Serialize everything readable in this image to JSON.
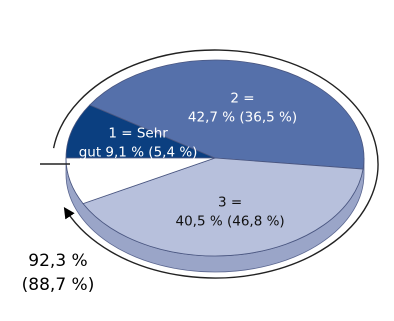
{
  "chart_data": {
    "type": "pie",
    "slices": [
      {
        "name": "1 = Sehr gut",
        "label_lines": [
          "1 = Sehr",
          "gut 9,1 % (5,4 %)"
        ],
        "value": 9.1,
        "comparison": 5.4,
        "color": "#0b3f80",
        "text_color": "#ffffff"
      },
      {
        "name": "2",
        "label_lines": [
          "2 =",
          "42,7 % (36,5 %)"
        ],
        "value": 42.7,
        "comparison": 36.5,
        "color": "#5570aa",
        "text_color": "#ffffff"
      },
      {
        "name": "3",
        "label_lines": [
          "3 =",
          "40,5 % (46,8 %)"
        ],
        "value": 40.5,
        "comparison": 46.8,
        "color": "#b7c0dc",
        "text_color": "#111111"
      },
      {
        "name": "rest",
        "label_lines": [],
        "value": 7.7,
        "color": "#ffffff"
      }
    ],
    "cumulative_label": [
      "92,3 %",
      "(88,7 %)"
    ],
    "style": "3d-tilted",
    "arrow": "clockwise arc from the boundary of slice 1 to the end of slice 3"
  }
}
